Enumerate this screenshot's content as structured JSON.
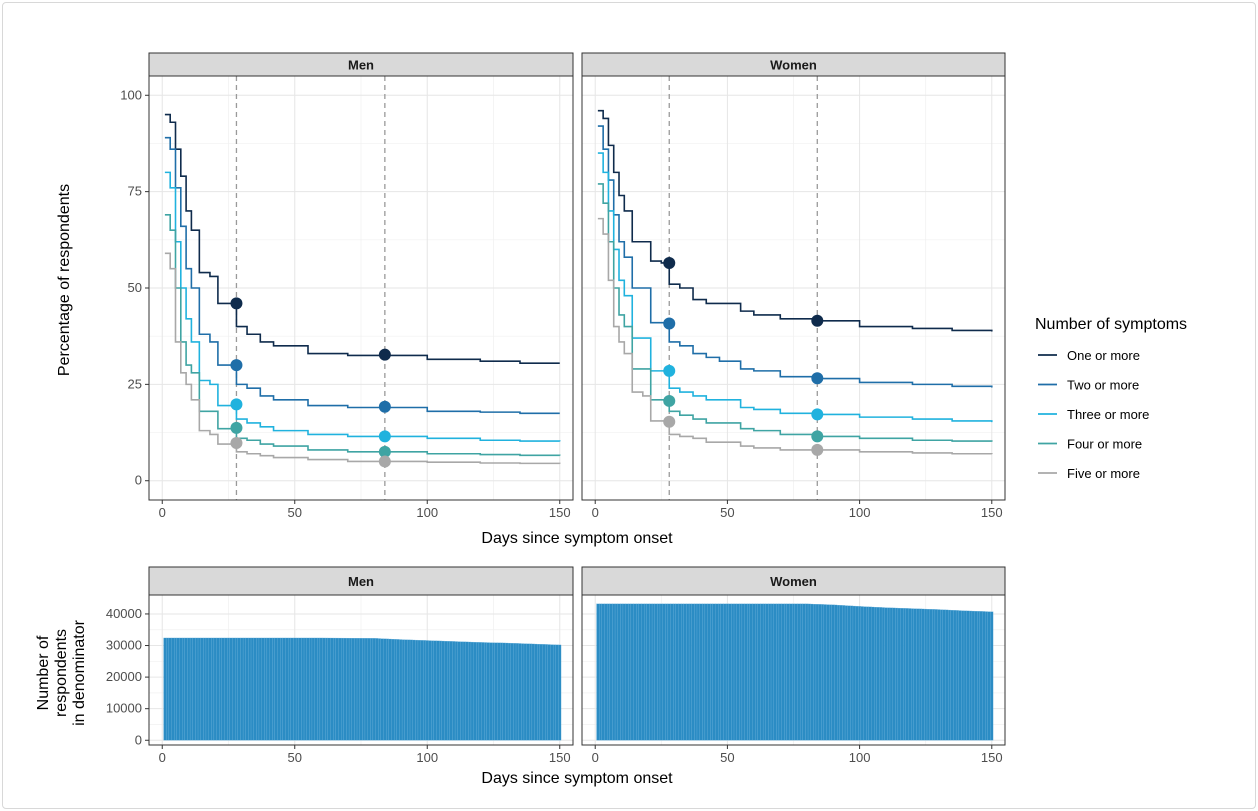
{
  "chart_data": [
    {
      "type": "line",
      "facets": [
        "Men",
        "Women"
      ],
      "xlabel": "Days since symptom onset",
      "ylabel": "Percentage of respondents",
      "xlim": [
        -5,
        155
      ],
      "ylim": [
        -5,
        105
      ],
      "xticks": [
        0,
        50,
        100,
        150
      ],
      "yticks": [
        0,
        25,
        50,
        75,
        100
      ],
      "grid": true,
      "step": true,
      "reference_lines_x": [
        28,
        84
      ],
      "legend": {
        "title": "Number of symptoms",
        "placement": "right",
        "entries": [
          "One or more",
          "Two or more",
          "Three or more",
          "Four or more",
          "Five or more"
        ]
      },
      "colors": [
        "#0f2b4c",
        "#1f6ea8",
        "#20b2de",
        "#3fa4a3",
        "#a8a8a8"
      ],
      "x": [
        1,
        3,
        5,
        7,
        9,
        11,
        14,
        18,
        21,
        25,
        28,
        32,
        37,
        42,
        47,
        55,
        60,
        70,
        77,
        84,
        100,
        120,
        135,
        150
      ],
      "series": {
        "Men": [
          {
            "name": "One or more",
            "values": [
              95,
              93,
              86,
              79,
              70,
              65,
              54,
              53,
              46,
              46,
              40,
              38,
              36,
              35,
              35,
              33,
              33,
              32.5,
              32.5,
              32.5,
              31.5,
              31,
              30.5,
              30.5
            ],
            "markers": {
              "28": 46,
              "84": 32.7
            }
          },
          {
            "name": "Two or more",
            "values": [
              89,
              86,
              76,
              66,
              55,
              50,
              38,
              36,
              30,
              30,
              25,
              24,
              22,
              21,
              21,
              19.5,
              19.5,
              19,
              19,
              19,
              18,
              17.8,
              17.5,
              17.5
            ],
            "markers": {
              "28": 30,
              "84": 19.2
            }
          },
          {
            "name": "Three or more",
            "values": [
              80,
              76,
              62,
              50,
              42,
              36,
              26,
              25,
              19.5,
              19.5,
              16,
              15,
              14,
              13,
              13,
              12,
              12,
              11.5,
              11.5,
              11.5,
              11,
              10.5,
              10.3,
              10.2
            ],
            "markers": {
              "28": 19.8,
              "84": 11.5
            }
          },
          {
            "name": "Four or more",
            "values": [
              69,
              65,
              50,
              36,
              30,
              28,
              18,
              18,
              13.5,
              13.5,
              11,
              10.5,
              9.5,
              9,
              9,
              8,
              8,
              7.5,
              7.5,
              7.5,
              7,
              6.8,
              6.6,
              6.5
            ],
            "markers": {
              "28": 13.7,
              "84": 7.5
            }
          },
          {
            "name": "Five or more",
            "values": [
              59,
              55,
              36,
              28,
              25,
              21,
              13,
              12,
              9.5,
              9.5,
              7.5,
              7,
              6.5,
              6,
              6,
              5.5,
              5.5,
              5,
              5,
              5,
              4.8,
              4.6,
              4.5,
              4.4
            ],
            "markers": {
              "28": 9.8,
              "84": 5
            }
          }
        ],
        "Women": [
          {
            "name": "One or more",
            "values": [
              96,
              94,
              87,
              80,
              74,
              70,
              62,
              62,
              57,
              56.5,
              51,
              50,
              47,
              46,
              46,
              44,
              43,
              42,
              42,
              41.5,
              40,
              39.5,
              39,
              38.7
            ],
            "markers": {
              "28": 56.5,
              "84": 41.5
            }
          },
          {
            "name": "Two or more",
            "values": [
              92,
              86,
              78,
              69,
              62,
              58,
              50,
              50,
              41,
              41,
              36,
              35,
              33,
              32,
              31,
              29,
              28.5,
              27,
              27,
              26.5,
              25.5,
              25,
              24.5,
              24.2
            ],
            "markers": {
              "28": 40.8,
              "84": 26.6
            }
          },
          {
            "name": "Three or more",
            "values": [
              85,
              80,
              70,
              60,
              52,
              48,
              37,
              37,
              28.5,
              28.5,
              24,
              23,
              22,
              21,
              21,
              19,
              18.5,
              17.5,
              17.5,
              17.2,
              16.5,
              16,
              15.5,
              15.2
            ],
            "markers": {
              "28": 28.5,
              "84": 17.2
            }
          },
          {
            "name": "Four or more",
            "values": [
              77,
              72,
              62,
              50,
              43,
              40,
              29,
              29,
              21,
              21,
              18,
              17,
              16,
              15,
              15,
              13.5,
              13,
              12,
              12,
              11.5,
              11,
              10.5,
              10.3,
              10.1
            ],
            "markers": {
              "28": 20.7,
              "84": 11.5
            }
          },
          {
            "name": "Five or more",
            "values": [
              68,
              64,
              52,
              40,
              36,
              33,
              23,
              22,
              15.5,
              15.5,
              12,
              11.5,
              11,
              10,
              10,
              9,
              8.5,
              8,
              8,
              8,
              7.5,
              7.2,
              7,
              6.9
            ],
            "markers": {
              "28": 15.3,
              "84": 8
            }
          }
        ]
      }
    },
    {
      "type": "bar",
      "facets": [
        "Men",
        "Women"
      ],
      "xlabel": "Days since symptom onset",
      "ylabel": [
        "Number of",
        "respondents",
        "in denominator"
      ],
      "xlim": [
        -5,
        155
      ],
      "ylim": [
        -1500,
        46000
      ],
      "xticks": [
        0,
        50,
        100,
        150
      ],
      "yticks": [
        0,
        10000,
        20000,
        30000,
        40000
      ],
      "grid": true,
      "bar_color": "#2b8cc4",
      "x": [
        1,
        20,
        40,
        60,
        80,
        90,
        100,
        110,
        120,
        130,
        140,
        150
      ],
      "series": {
        "Men": [
          32400,
          32400,
          32400,
          32400,
          32300,
          31900,
          31600,
          31300,
          31000,
          30800,
          30500,
          30200
        ],
        "Women": [
          43200,
          43200,
          43200,
          43200,
          43200,
          42900,
          42400,
          42000,
          41700,
          41400,
          41000,
          40700
        ]
      }
    }
  ]
}
